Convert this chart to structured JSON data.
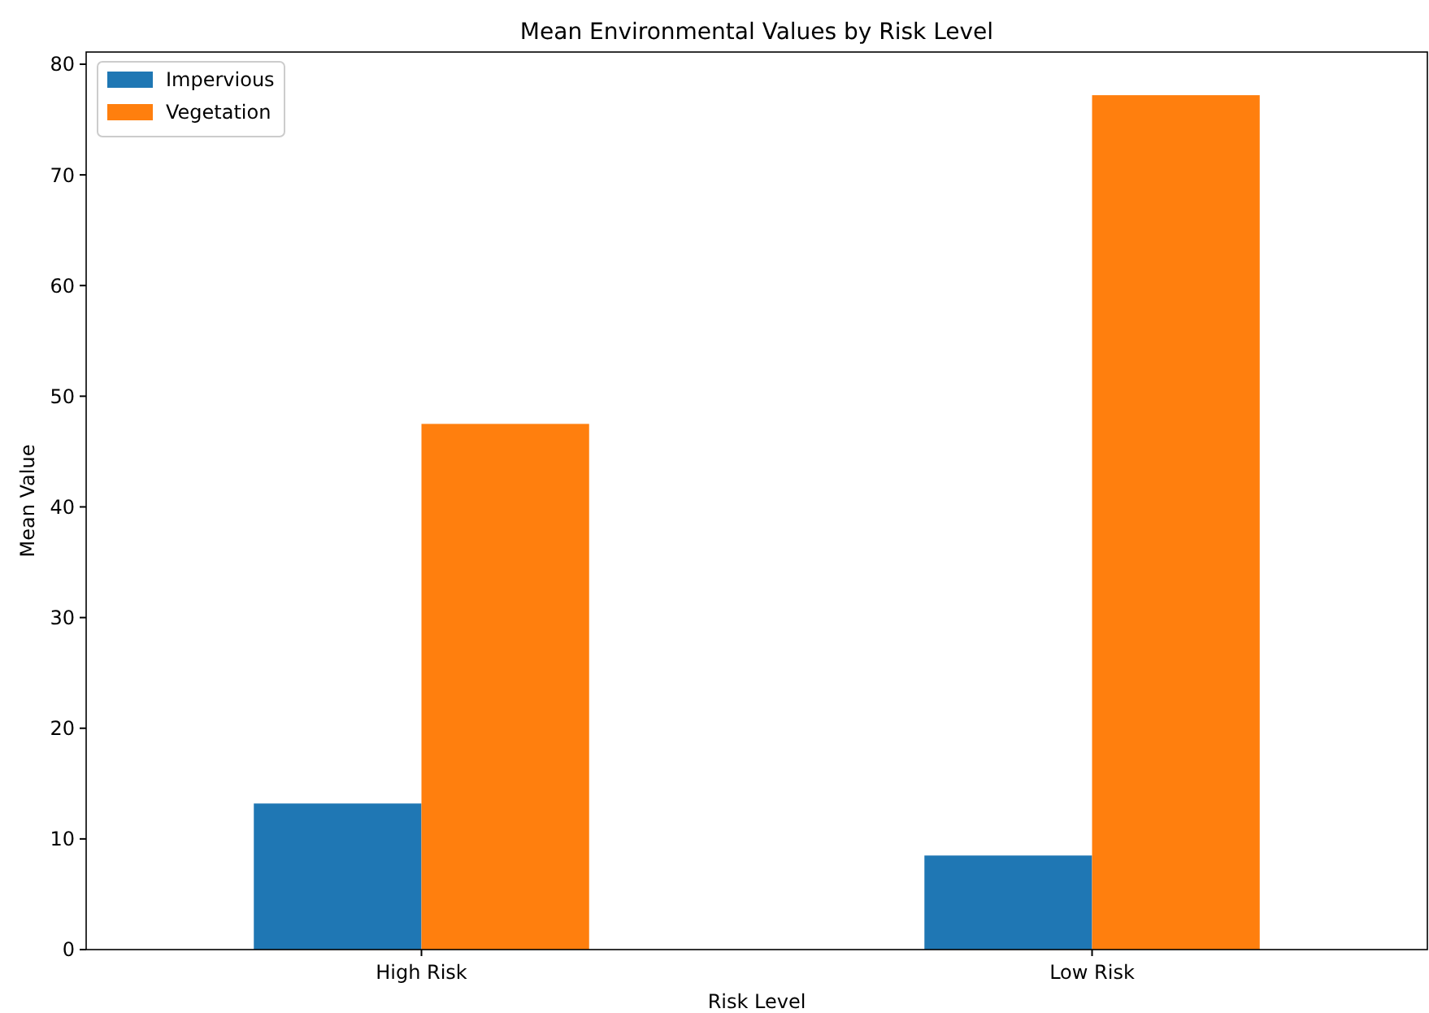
{
  "chart_data": {
    "type": "bar",
    "title": "Mean Environmental Values by Risk Level",
    "xlabel": "Risk Level",
    "ylabel": "Mean Value",
    "categories": [
      "High Risk",
      "Low Risk"
    ],
    "series": [
      {
        "name": "Impervious",
        "color": "#1f77b4",
        "values": [
          13.2,
          8.5
        ]
      },
      {
        "name": "Vegetation",
        "color": "#ff7f0e",
        "values": [
          47.5,
          77.2
        ]
      }
    ],
    "ylim": [
      0,
      81.1
    ],
    "yticks": [
      0,
      10,
      20,
      30,
      40,
      50,
      60,
      70,
      80
    ],
    "grid": false,
    "legend": "top left"
  }
}
